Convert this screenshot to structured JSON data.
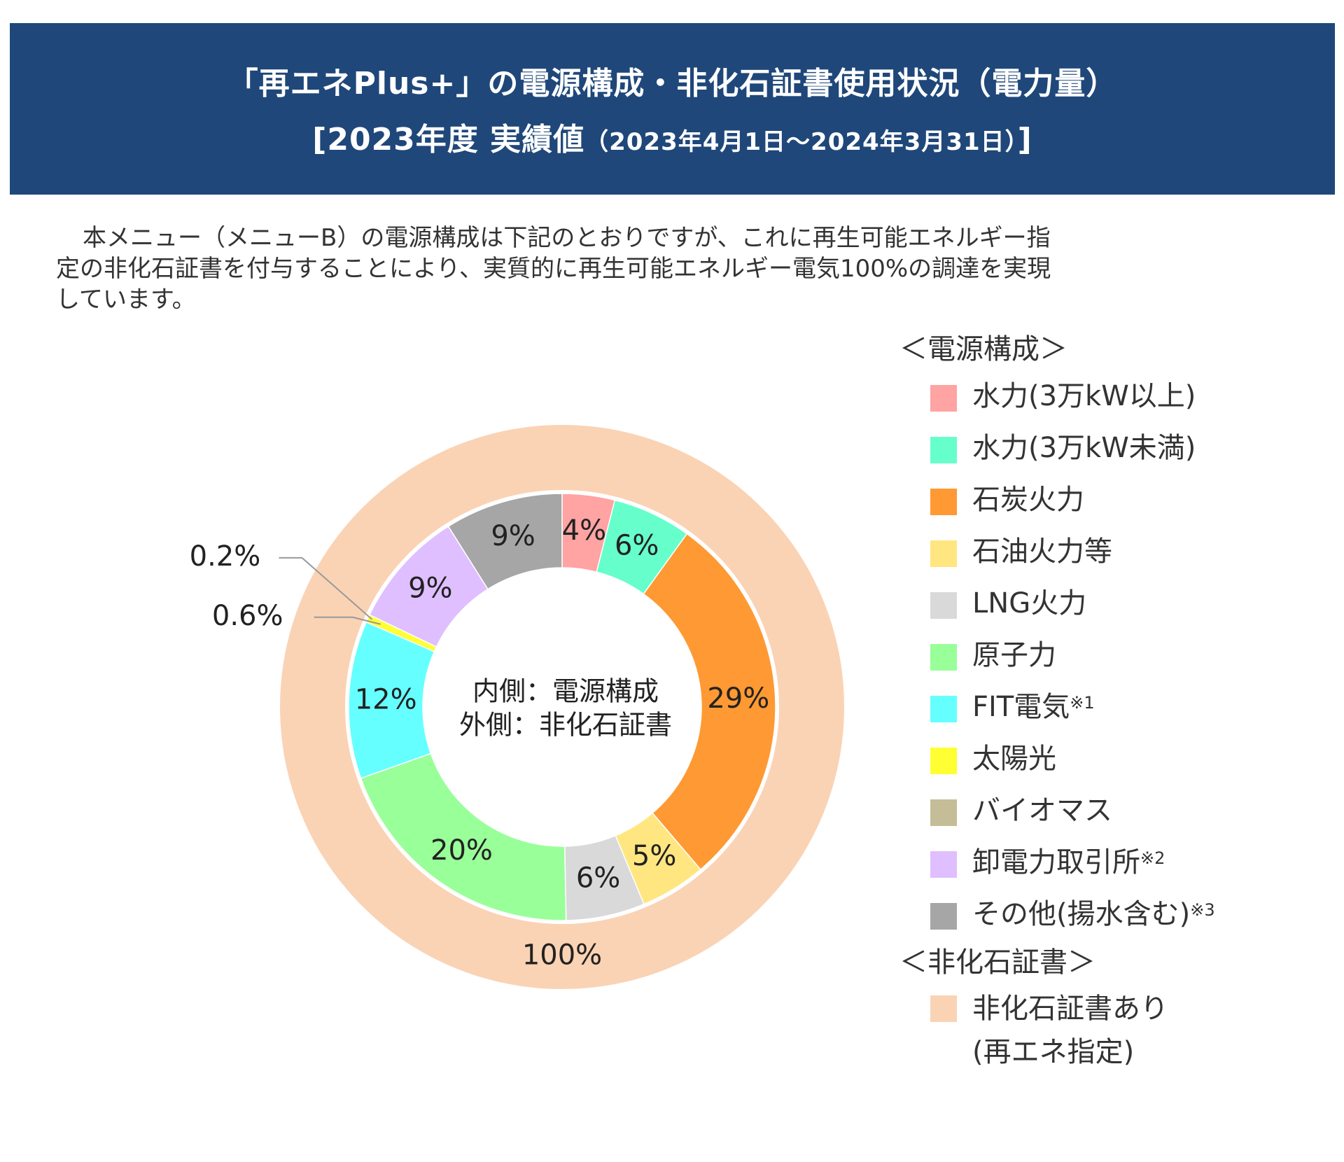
{
  "header": {
    "title": "「再エネPlus+」の電源構成・非化石証書使用状況（電力量）",
    "subtitle_main": "[2023年度 実績値",
    "subtitle_period": "（2023年4月1日～2024年3月31日）",
    "subtitle_end": "]"
  },
  "description": {
    "line1": "本メニュー（メニューB）の電源構成は下記のとおりですが、これに再生可能エネルギー指",
    "line2": "定の非化石証書を付与することにより、実質的に再生可能エネルギー電気100%の調達を実現",
    "line3": "しています。"
  },
  "legend": {
    "heading_mix": "＜電源構成＞",
    "heading_cert": "＜非化石証書＞",
    "items": [
      {
        "label": "水力(3万kW以上)",
        "note": "",
        "color": "#ffa3a3"
      },
      {
        "label": "水力(3万kW未満)",
        "note": "",
        "color": "#66ffcc"
      },
      {
        "label": "石炭火力",
        "note": "",
        "color": "#ff9933"
      },
      {
        "label": "石油火力等",
        "note": "",
        "color": "#ffe680"
      },
      {
        "label": "LNG火力",
        "note": "",
        "color": "#d9d9d9"
      },
      {
        "label": "原子力",
        "note": "",
        "color": "#99ff99"
      },
      {
        "label": "FIT電気",
        "note": "※1",
        "color": "#66ffff"
      },
      {
        "label": "太陽光",
        "note": "",
        "color": "#ffff33"
      },
      {
        "label": "バイオマス",
        "note": "",
        "color": "#c4bd97"
      },
      {
        "label": "卸電力取引所",
        "note": "※2",
        "color": "#dfbfff"
      },
      {
        "label": "その他(揚水含む)",
        "note": "※3",
        "color": "#a6a6a6"
      }
    ],
    "cert_item": {
      "label_line1": "非化石証書あり",
      "label_line2": "(再エネ指定)",
      "color": "#fad3b5"
    }
  },
  "chart_data": {
    "type": "pie",
    "title": "内側：電源構成 / 外側：非化石証書",
    "center_label_line1": "内側：電源構成",
    "center_label_line2": "外側：非化石証書",
    "inner": {
      "name": "電源構成",
      "categories": [
        "水力(3万kW以上)",
        "水力(3万kW未満)",
        "石炭火力",
        "石油火力等",
        "LNG火力",
        "原子力",
        "FIT電気",
        "太陽光",
        "バイオマス",
        "卸電力取引所",
        "その他(揚水含む)"
      ],
      "values": [
        4,
        6,
        29,
        5,
        6,
        20,
        12,
        0.6,
        0,
        9,
        9
      ],
      "data_labels": [
        "4%",
        "6%",
        "29%",
        "5%",
        "6%",
        "20%",
        "12%",
        "0.6%",
        "",
        "9%",
        "9%"
      ],
      "colors": [
        "#ffa3a3",
        "#66ffcc",
        "#ff9933",
        "#ffe680",
        "#d9d9d9",
        "#99ff99",
        "#66ffff",
        "#ffff33",
        "#c4bd97",
        "#dfbfff",
        "#a6a6a6"
      ]
    },
    "outer": {
      "name": "非化石証書",
      "categories": [
        "非化石証書あり(再エネ指定)"
      ],
      "values": [
        100
      ],
      "data_labels": [
        "100%"
      ],
      "colors": [
        "#fad3b5"
      ]
    },
    "callouts": [
      "0.2%",
      "0.6%"
    ]
  }
}
